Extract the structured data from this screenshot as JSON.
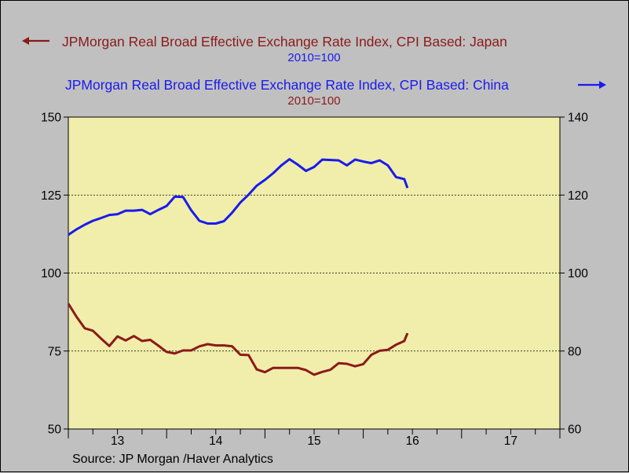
{
  "colors": {
    "background": "#c0c0c0",
    "plot_background": "#f0eeaa",
    "japan": "#8b1a1a",
    "china": "#1a1aee"
  },
  "legend": {
    "japan_label": "JPMorgan Real Broad Effective Exchange Rate Index, CPI Based: Japan",
    "japan_unit": "2010=100",
    "japan_arrow": "left",
    "china_label": "JPMorgan Real Broad Effective Exchange Rate Index, CPI Based: China",
    "china_unit": "2010=100",
    "china_arrow": "right"
  },
  "source": "Source:  JP Morgan /Haver Analytics",
  "chart_data": {
    "type": "line",
    "title": "",
    "grid": "horizontal dashed at 75, 100, 125 (left axis)",
    "x_axis": {
      "range": [
        2012.5,
        2017.5
      ],
      "tick_labels": [
        {
          "label": "13",
          "x": 2013.0
        },
        {
          "label": "14",
          "x": 2014.0
        },
        {
          "label": "15",
          "x": 2015.0
        },
        {
          "label": "16",
          "x": 2016.0
        },
        {
          "label": "17",
          "x": 2017.0
        }
      ]
    },
    "left_axis": {
      "range": [
        50,
        150
      ],
      "ticks": [
        50,
        75,
        100,
        125,
        150
      ],
      "series": "Japan"
    },
    "right_axis": {
      "range": [
        60,
        140
      ],
      "ticks": [
        60,
        80,
        100,
        120,
        140
      ],
      "series": "China"
    },
    "series": [
      {
        "name": "JPMorgan Real Broad Effective Exchange Rate Index, CPI Based: Japan",
        "axis": "left",
        "color": "#8b1a1a",
        "x": [
          2012.5,
          2012.583,
          2012.667,
          2012.75,
          2012.833,
          2012.917,
          2013.0,
          2013.083,
          2013.167,
          2013.25,
          2013.333,
          2013.417,
          2013.5,
          2013.583,
          2013.667,
          2013.75,
          2013.833,
          2013.917,
          2014.0,
          2014.083,
          2014.167,
          2014.25,
          2014.333,
          2014.417,
          2014.5,
          2014.583,
          2014.667,
          2014.75,
          2014.833,
          2014.917,
          2015.0,
          2015.083,
          2015.167,
          2015.25,
          2015.333,
          2015.417,
          2015.5,
          2015.583,
          2015.667,
          2015.75,
          2015.833,
          2015.917,
          2015.95
        ],
        "values": [
          90.2,
          86.0,
          82.3,
          81.5,
          79.0,
          76.6,
          79.7,
          78.4,
          79.8,
          78.2,
          78.6,
          76.7,
          74.7,
          74.2,
          75.2,
          75.2,
          76.5,
          77.2,
          76.8,
          76.8,
          76.5,
          73.8,
          73.7,
          69.1,
          68.2,
          69.6,
          69.6,
          69.6,
          69.6,
          68.9,
          67.4,
          68.3,
          69.0,
          71.1,
          70.9,
          70.1,
          70.8,
          73.8,
          75.1,
          75.4,
          77.0,
          78.2,
          80.7
        ]
      },
      {
        "name": "JPMorgan Real Broad Effective Exchange Rate Index, CPI Based: China",
        "axis": "right",
        "color": "#1a1aee",
        "x": [
          2012.5,
          2012.583,
          2012.667,
          2012.75,
          2012.833,
          2012.917,
          2013.0,
          2013.083,
          2013.167,
          2013.25,
          2013.333,
          2013.417,
          2013.5,
          2013.583,
          2013.667,
          2013.75,
          2013.833,
          2013.917,
          2014.0,
          2014.083,
          2014.167,
          2014.25,
          2014.333,
          2014.417,
          2014.5,
          2014.583,
          2014.667,
          2014.75,
          2014.833,
          2014.917,
          2015.0,
          2015.083,
          2015.167,
          2015.25,
          2015.333,
          2015.417,
          2015.5,
          2015.583,
          2015.667,
          2015.75,
          2015.833,
          2015.917,
          2015.95
        ],
        "values": [
          109.8,
          111.2,
          112.4,
          113.4,
          114.1,
          114.9,
          115.1,
          116.0,
          116.0,
          116.2,
          115.1,
          116.2,
          117.2,
          119.6,
          119.5,
          116.1,
          113.4,
          112.7,
          112.7,
          113.3,
          115.5,
          118.1,
          120.1,
          122.4,
          123.9,
          125.6,
          127.6,
          129.2,
          127.8,
          126.2,
          127.2,
          129.1,
          129.0,
          128.9,
          127.6,
          129.1,
          128.6,
          128.2,
          128.9,
          127.6,
          124.6,
          124.1,
          121.8
        ]
      }
    ]
  }
}
